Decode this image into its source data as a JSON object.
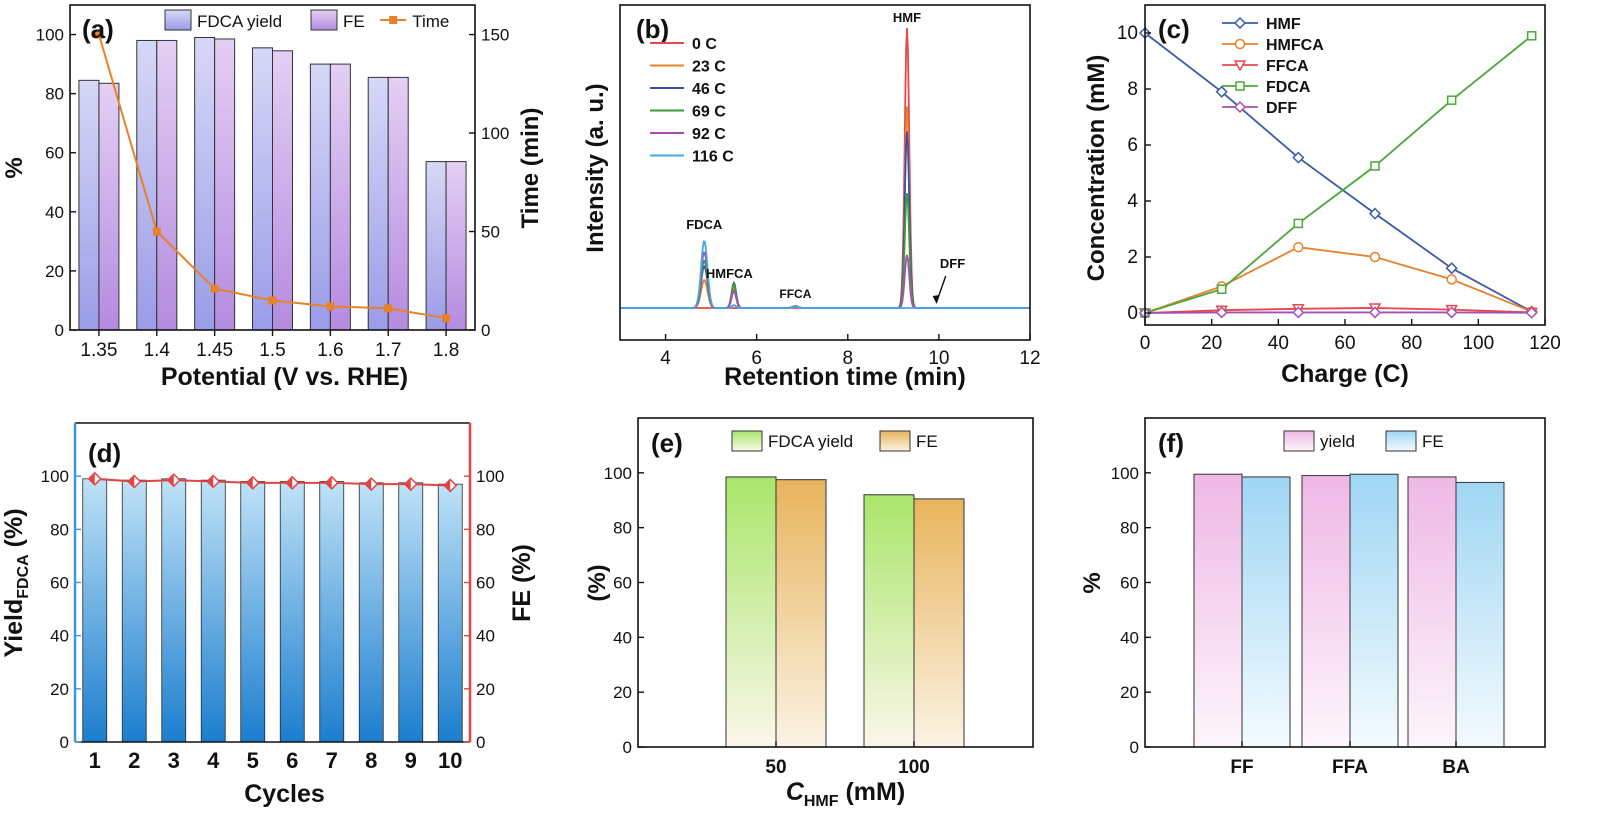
{
  "chart_data": [
    {
      "panel": "(a)",
      "type": "bar",
      "categories": [
        "1.35",
        "1.4",
        "1.45",
        "1.5",
        "1.6",
        "1.7",
        "1.8"
      ],
      "xlabel": "Potential (V vs. RHE)",
      "ylabel": "%",
      "ylabel_right": "Time (min)",
      "ylim": [
        0,
        110
      ],
      "ylim_right": [
        0,
        165
      ],
      "yticks": [
        0,
        20,
        40,
        60,
        80,
        100
      ],
      "yticks_right": [
        0,
        50,
        100,
        150
      ],
      "series": [
        {
          "name": "FDCA yield",
          "values": [
            84.5,
            98,
            99,
            95.5,
            90,
            85.5,
            57
          ],
          "color": "#b7b9ef"
        },
        {
          "name": "FE",
          "values": [
            83.5,
            98,
            98.5,
            94.5,
            90,
            85.5,
            57
          ],
          "color": "#c9a8ea"
        },
        {
          "name": "Time",
          "type": "line",
          "axis": "right",
          "values": [
            150,
            50,
            21,
            15,
            12,
            11,
            6
          ],
          "color": "#e8812b"
        }
      ],
      "legend": "top"
    },
    {
      "panel": "(b)",
      "type": "line",
      "xlabel": "Retention time (min)",
      "ylabel": "Intensity (a. u.)",
      "xlim": [
        3,
        12
      ],
      "xticks": [
        4,
        6,
        8,
        10,
        12
      ],
      "series": [
        {
          "name": "0 C",
          "color": "#e8474c",
          "peaks": {
            "FDCA": 0,
            "HMFCA": 0,
            "FFCA": 0,
            "HMF": 1.0
          }
        },
        {
          "name": "23 C",
          "color": "#e8812b",
          "peaks": {
            "FDCA": 0.1,
            "HMFCA": 0.07,
            "FFCA": 0.005,
            "HMF": 0.72
          }
        },
        {
          "name": "46 C",
          "color": "#3b4fa8",
          "peaks": {
            "FDCA": 0.15,
            "HMFCA": 0.09,
            "FFCA": 0.006,
            "HMF": 0.63
          }
        },
        {
          "name": "69 C",
          "color": "#3f9a3a",
          "peaks": {
            "FDCA": 0.17,
            "HMFCA": 0.085,
            "FFCA": 0.007,
            "HMF": 0.41
          }
        },
        {
          "name": "92 C",
          "color": "#a64fb0",
          "peaks": {
            "FDCA": 0.2,
            "HMFCA": 0.06,
            "FFCA": 0.006,
            "HMF": 0.19
          }
        },
        {
          "name": "116 C",
          "color": "#45a6e8",
          "peaks": {
            "FDCA": 0.24,
            "HMFCA": 0.01,
            "FFCA": 0.004,
            "HMF": 0.0
          }
        }
      ],
      "peak_positions": {
        "FDCA": 4.85,
        "HMFCA": 5.5,
        "FFCA": 6.85,
        "HMF": 9.3
      },
      "annotations": [
        "FDCA",
        "HMFCA",
        "FFCA",
        "HMF",
        "DFF"
      ],
      "legend": "top-left"
    },
    {
      "panel": "(c)",
      "type": "line",
      "xlabel": "Charge (C)",
      "ylabel": "Concentration (mM)",
      "x": [
        0,
        23,
        46,
        69,
        92,
        116
      ],
      "xlim": [
        0,
        120
      ],
      "ylim": [
        0,
        11
      ],
      "xticks": [
        0,
        20,
        40,
        60,
        80,
        100,
        120
      ],
      "yticks": [
        0,
        2,
        4,
        6,
        8,
        10
      ],
      "series": [
        {
          "name": "HMF",
          "values": [
            10.0,
            7.9,
            5.55,
            3.55,
            1.6,
            0.05
          ],
          "color": "#3b5ba8",
          "marker": "diamond"
        },
        {
          "name": "HMFCA",
          "values": [
            0,
            0.95,
            2.35,
            2.0,
            1.2,
            0.05
          ],
          "color": "#e8812b",
          "marker": "circle"
        },
        {
          "name": "FFCA",
          "values": [
            0,
            0.1,
            0.15,
            0.18,
            0.12,
            0.02
          ],
          "color": "#e8474c",
          "marker": "triangle"
        },
        {
          "name": "FDCA",
          "values": [
            0,
            0.85,
            3.2,
            5.25,
            7.6,
            9.9
          ],
          "color": "#4aa838",
          "marker": "square"
        },
        {
          "name": "DFF",
          "values": [
            0,
            0.02,
            0.02,
            0.02,
            0.02,
            0.01
          ],
          "color": "#a64fb0",
          "marker": "diamond"
        }
      ],
      "legend": "top-center"
    },
    {
      "panel": "(d)",
      "type": "bar",
      "categories": [
        "1",
        "2",
        "3",
        "4",
        "5",
        "6",
        "7",
        "8",
        "9",
        "10"
      ],
      "xlabel": "Cycles",
      "ylabel_main": "Yield",
      "ylabel_sub": "FDCA",
      "ylabel_unit": " (%)",
      "ylabel_right": "FE (%)",
      "ylim": [
        0,
        120
      ],
      "ylim_right": [
        0,
        120
      ],
      "yticks": [
        0,
        20,
        40,
        60,
        80,
        100
      ],
      "yticks_right": [
        0,
        20,
        40,
        60,
        80,
        100
      ],
      "series": [
        {
          "name": "Yield",
          "values": [
            99,
            98.5,
            99,
            98.5,
            98,
            98,
            98,
            97.5,
            97.5,
            97
          ],
          "color": "#2f8fd8"
        },
        {
          "name": "FE",
          "type": "line",
          "axis": "right",
          "values": [
            99,
            98,
            98.5,
            98,
            97.5,
            97.5,
            97.5,
            97,
            97,
            96.5
          ],
          "color": "#e24444"
        }
      ],
      "colors": {
        "left_axis": "#3a9ad9",
        "right_axis": "#e24444"
      }
    },
    {
      "panel": "(e)",
      "type": "bar",
      "categories": [
        "50",
        "100"
      ],
      "xlabel_main": "C",
      "xlabel_sub": "HMF",
      "xlabel_unit": " (mM)",
      "ylabel": "(%)",
      "ylim": [
        0,
        120
      ],
      "yticks": [
        0,
        20,
        40,
        60,
        80,
        100
      ],
      "series": [
        {
          "name": "FDCA yield",
          "values": [
            98.5,
            92
          ],
          "color": "#a9e66a"
        },
        {
          "name": "FE",
          "values": [
            97.5,
            90.5
          ],
          "color": "#e8b45c"
        }
      ],
      "legend": "top"
    },
    {
      "panel": "(f)",
      "type": "bar",
      "categories": [
        "FF",
        "FFA",
        "BA"
      ],
      "xlabel": "",
      "ylabel": "%",
      "ylim": [
        0,
        120
      ],
      "yticks": [
        0,
        20,
        40,
        60,
        80,
        100
      ],
      "series": [
        {
          "name": "yield",
          "values": [
            99.5,
            99,
            98.5
          ],
          "color": "#efb8e6"
        },
        {
          "name": "FE",
          "values": [
            98.5,
            99.5,
            96.5
          ],
          "color": "#9fd6f4"
        }
      ],
      "legend": "top"
    }
  ]
}
